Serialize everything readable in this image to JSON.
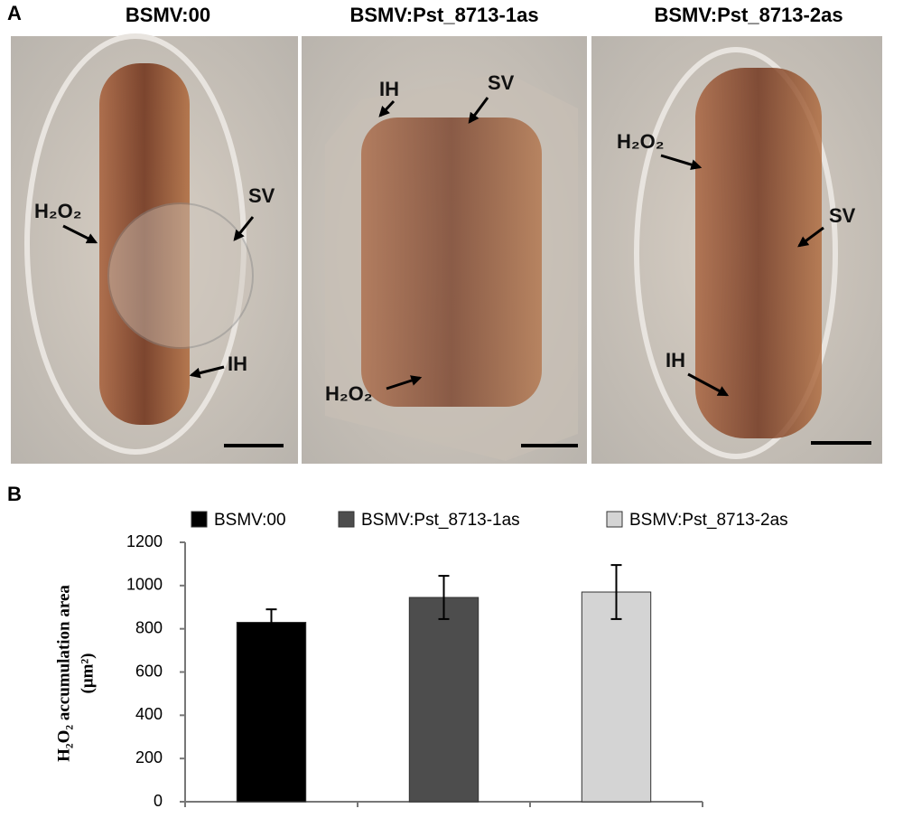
{
  "panel_labels": [
    "A",
    "B"
  ],
  "micrographs": [
    {
      "title": "BSMV:00",
      "annotations": [
        "H₂O₂",
        "SV",
        "IH"
      ]
    },
    {
      "title": "BSMV:Pst_8713-1as",
      "annotations": [
        "IH",
        "SV",
        "H₂O₂"
      ]
    },
    {
      "title": "BSMV:Pst_8713-2as",
      "annotations": [
        "H₂O₂",
        "SV",
        "IH"
      ]
    }
  ],
  "chart_data": {
    "type": "bar",
    "ylabel": [
      "H₂O₂ accumulation area",
      "(μm²)"
    ],
    "categories": [
      null,
      null,
      null
    ],
    "values": [
      830,
      945,
      970
    ],
    "errors": [
      60,
      100,
      125
    ],
    "colors": [
      "#000000",
      "#4d4d4d",
      "#d4d4d4"
    ],
    "legend": [
      "BSMV:00",
      "BSMV:Pst_8713-1as",
      "BSMV:Pst_8713-2as"
    ],
    "ylim": [
      0,
      1200
    ],
    "yticks": [
      0,
      200,
      400,
      600,
      800,
      1000,
      1200
    ],
    "grid": false
  }
}
